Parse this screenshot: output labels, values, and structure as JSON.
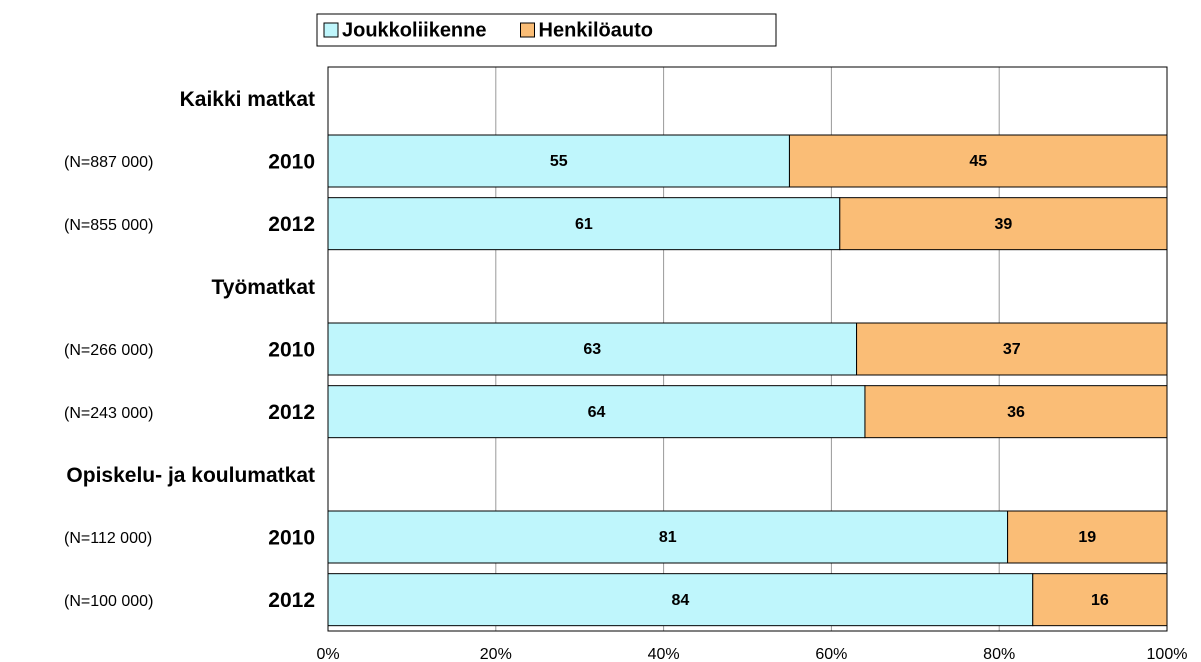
{
  "chart_data": {
    "type": "stacked_barh",
    "categories": [
      "Kaikki matkat",
      "2010",
      "2012",
      "Työmatkat",
      "2010",
      "2012",
      "Opiskelu- ja koulumatkat",
      "2010",
      "2012"
    ],
    "n_labels": [
      null,
      "(N=887 000)",
      "(N=855 000)",
      null,
      "(N=266 000)",
      "(N=243 000)",
      null,
      "(N=112 000)",
      "(N=100 000)"
    ],
    "series": [
      {
        "name": "Joukkoliikenne",
        "color": "#bff6fc",
        "values": [
          null,
          55,
          61,
          null,
          63,
          64,
          null,
          81,
          84
        ]
      },
      {
        "name": "Henkilöauto",
        "color": "#fabd76",
        "values": [
          null,
          45,
          39,
          null,
          37,
          36,
          null,
          19,
          16
        ]
      }
    ],
    "xlim": [
      0,
      100
    ],
    "xticks": [
      {
        "value": 0,
        "label": "0%"
      },
      {
        "value": 20,
        "label": "20%"
      },
      {
        "value": 40,
        "label": "40%"
      },
      {
        "value": 60,
        "label": "60%"
      },
      {
        "value": 80,
        "label": "80%"
      },
      {
        "value": 100,
        "label": "100%"
      }
    ],
    "grid": true,
    "legend": "top"
  }
}
